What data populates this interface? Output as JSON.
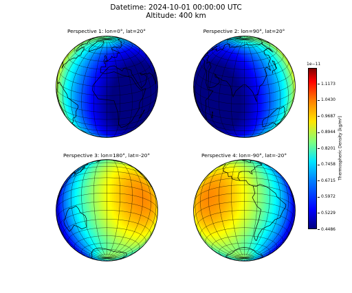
{
  "header": {
    "line1": "Datetime: 2024-10-01 00:00:00 UTC",
    "line2": "Altitude: 400 km"
  },
  "chart_data": {
    "type": "heatmap",
    "panels": [
      {
        "title": "Perspective 1: lon=0°, lat=20°",
        "lon": 0,
        "lat": 20
      },
      {
        "title": "Perspective 2: lon=90°, lat=20°",
        "lon": 90,
        "lat": 20
      },
      {
        "title": "Perspective 3: lon=180°, lat=-20°",
        "lon": 180,
        "lat": -20
      },
      {
        "title": "Perspective 4: lon=-90°, lat=-20°",
        "lon": -90,
        "lat": -20
      }
    ],
    "colorbar": {
      "label": "Thermospheric Density [kg/m³]",
      "exponent": "1e−11",
      "ticks": [
        "1.1173",
        "1.0430",
        "0.9687",
        "0.8944",
        "0.8201",
        "0.7458",
        "0.6715",
        "0.5972",
        "0.5229",
        "0.4486"
      ],
      "tick_values": [
        1.1173,
        1.043,
        0.9687,
        0.8944,
        0.8201,
        0.7458,
        0.6715,
        0.5972,
        0.5229,
        0.4486
      ],
      "range": [
        0.4486,
        1.19
      ],
      "colormap": "jet"
    },
    "grid": true,
    "density_peak_lon": -135,
    "density_min_lon": 45
  }
}
